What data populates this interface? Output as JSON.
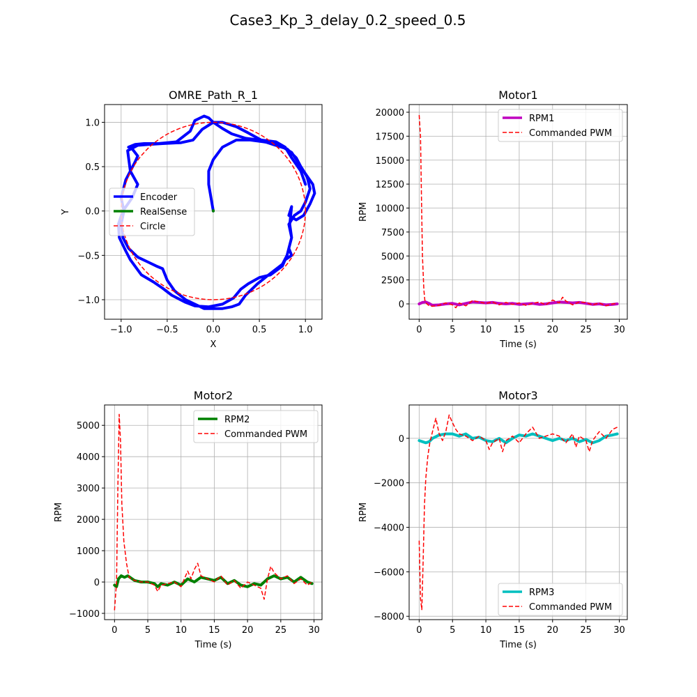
{
  "figure": {
    "suptitle": "Case3_Kp_3_delay_0.2_speed_0.5"
  },
  "chart_data": [
    {
      "id": "path",
      "type": "line",
      "title": "OMRE_Path_R_1",
      "xlabel": "X",
      "ylabel": "Y",
      "xlim": [
        -1.18,
        1.18
      ],
      "ylim": [
        -1.22,
        1.2
      ],
      "xticks": [
        -1.0,
        -0.5,
        0.0,
        0.5,
        1.0
      ],
      "xtick_labels": [
        "−1.0",
        "−0.5",
        "0.0",
        "0.5",
        "1.0"
      ],
      "yticks": [
        -1.0,
        -0.5,
        0.0,
        0.5,
        1.0
      ],
      "ytick_labels": [
        "−1.0",
        "−0.5",
        "0.0",
        "0.5",
        "1.0"
      ],
      "grid": true,
      "legend_position": "center-left",
      "series": [
        {
          "name": "Encoder",
          "color": "#0000ff",
          "style": "solid",
          "width": 4,
          "x": [
            0.0,
            -0.05,
            -0.05,
            0.0,
            0.1,
            0.25,
            0.4,
            0.55,
            0.65,
            0.72,
            0.85,
            0.92,
            1.0,
            1.08,
            1.1,
            1.05,
            0.98,
            0.9,
            0.82,
            0.85,
            0.83,
            0.85,
            0.8,
            0.75,
            0.6,
            0.48,
            0.35,
            0.28,
            0.2,
            0.1,
            0.0,
            -0.1,
            -0.2,
            -0.3,
            -0.42,
            -0.5,
            -0.55,
            -0.62,
            -0.7,
            -0.82,
            -0.92,
            -0.98,
            -1.0,
            -0.97,
            -1.0,
            -0.95,
            -0.85,
            -0.82,
            -0.88,
            -0.92,
            -0.85,
            -0.75,
            -0.6,
            -0.4,
            -0.25,
            -0.2,
            -0.1,
            -0.05,
            0.0,
            0.1,
            0.2,
            0.35,
            0.5,
            0.65,
            0.8,
            0.9,
            0.95,
            1.02,
            1.05,
            1.0,
            0.95,
            0.88,
            0.82,
            0.85,
            0.82,
            0.85,
            0.78,
            0.75,
            0.62,
            0.5,
            0.38,
            0.3,
            0.22,
            0.1,
            -0.05,
            -0.2,
            -0.3,
            -0.45,
            -0.55,
            -0.65,
            -0.78,
            -0.9,
            -0.95,
            -1.02,
            -1.03,
            -0.98,
            -0.88,
            -0.82,
            -0.9,
            -0.93,
            -0.82,
            -0.7,
            -0.55,
            -0.35,
            -0.22,
            -0.12,
            0.0,
            0.1,
            0.25,
            0.38,
            0.52,
            0.68,
            0.78,
            0.85,
            0.95,
            1.0
          ],
          "y": [
            0.0,
            0.3,
            0.45,
            0.58,
            0.72,
            0.8,
            0.8,
            0.78,
            0.76,
            0.74,
            0.66,
            0.55,
            0.42,
            0.3,
            0.2,
            0.08,
            -0.05,
            -0.1,
            -0.05,
            0.05,
            -0.15,
            -0.3,
            -0.5,
            -0.6,
            -0.72,
            -0.82,
            -0.95,
            -1.05,
            -1.08,
            -1.1,
            -1.1,
            -1.1,
            -1.05,
            -1.0,
            -0.9,
            -0.78,
            -0.65,
            -0.62,
            -0.58,
            -0.52,
            -0.42,
            -0.3,
            -0.15,
            0.0,
            0.15,
            0.35,
            0.55,
            0.62,
            0.7,
            0.72,
            0.75,
            0.76,
            0.76,
            0.78,
            0.9,
            1.02,
            1.07,
            1.05,
            1.0,
            0.93,
            0.87,
            0.82,
            0.8,
            0.75,
            0.7,
            0.6,
            0.5,
            0.38,
            0.25,
            0.1,
            0.0,
            -0.05,
            -0.15,
            -0.3,
            -0.42,
            -0.5,
            -0.55,
            -0.62,
            -0.72,
            -0.75,
            -0.82,
            -0.88,
            -0.98,
            -1.05,
            -1.08,
            -1.07,
            -1.03,
            -0.95,
            -0.87,
            -0.8,
            -0.72,
            -0.55,
            -0.45,
            -0.3,
            -0.15,
            0.0,
            0.15,
            0.3,
            0.45,
            0.68,
            0.74,
            0.75,
            0.76,
            0.77,
            0.8,
            0.92,
            1.0,
            1.0,
            0.95,
            0.88,
            0.8,
            0.78,
            0.72,
            0.6,
            0.45,
            0.3
          ]
        },
        {
          "name": "RealSense",
          "color": "#008000",
          "style": "solid",
          "width": 4,
          "x": [
            0.0,
            0.0
          ],
          "y": [
            0.0,
            0.005
          ]
        },
        {
          "name": "Circle",
          "color": "#ff0000",
          "style": "dashed",
          "width": 1.5,
          "parametric": "circle",
          "radius": 1.0,
          "x": [],
          "y": []
        }
      ]
    },
    {
      "id": "motor1",
      "type": "line",
      "title": "Motor1",
      "xlabel": "Time (s)",
      "ylabel": "RPM",
      "xlim": [
        -1.5,
        31.2
      ],
      "ylim": [
        -1600,
        20800
      ],
      "xticks": [
        0,
        5,
        10,
        15,
        20,
        25,
        30
      ],
      "xtick_labels": [
        "0",
        "5",
        "10",
        "15",
        "20",
        "25",
        "30"
      ],
      "yticks": [
        0,
        2500,
        5000,
        7500,
        10000,
        12500,
        15000,
        17500,
        20000
      ],
      "ytick_labels": [
        "0",
        "2500",
        "5000",
        "7500",
        "10000",
        "12500",
        "15000",
        "17500",
        "20000"
      ],
      "grid": true,
      "legend_position": "upper-right",
      "series": [
        {
          "name": "RPM1",
          "color": "#bf00bf",
          "style": "solid",
          "width": 4,
          "x": [
            0,
            0.5,
            1,
            1.5,
            2,
            3,
            4,
            5,
            6,
            7,
            8,
            9,
            10,
            11,
            12,
            13,
            14,
            15,
            16,
            17,
            18,
            19,
            20,
            21,
            22,
            23,
            24,
            25,
            26,
            27,
            28,
            29,
            29.7
          ],
          "y": [
            0,
            150,
            200,
            50,
            -150,
            -100,
            0,
            50,
            -100,
            50,
            200,
            150,
            100,
            150,
            50,
            0,
            50,
            -50,
            0,
            50,
            -50,
            0,
            100,
            200,
            150,
            100,
            150,
            50,
            -50,
            0,
            -100,
            -50,
            0
          ]
        },
        {
          "name": "Commanded PWM",
          "color": "#ff0000",
          "style": "dashed",
          "width": 1.5,
          "x": [
            0,
            0.2,
            0.35,
            0.5,
            0.7,
            0.85,
            1,
            1.5,
            2,
            3,
            4,
            5,
            5.5,
            6,
            7,
            8,
            9,
            10,
            11,
            12,
            13,
            14,
            15,
            16,
            17,
            18,
            19,
            20,
            21,
            21.5,
            22,
            23,
            24,
            25,
            26,
            27,
            28,
            29,
            29.7
          ],
          "y": [
            19700,
            17500,
            11000,
            5000,
            1500,
            400,
            100,
            -200,
            -250,
            -150,
            100,
            -100,
            -400,
            100,
            -200,
            350,
            200,
            50,
            200,
            -100,
            150,
            -50,
            100,
            -150,
            50,
            200,
            -100,
            400,
            100,
            700,
            300,
            -100,
            200,
            150,
            -100,
            100,
            -200,
            0,
            50
          ]
        }
      ]
    },
    {
      "id": "motor2",
      "type": "line",
      "title": "Motor2",
      "xlabel": "Time (s)",
      "ylabel": "RPM",
      "xlim": [
        -1.5,
        31.2
      ],
      "ylim": [
        -1200,
        5650
      ],
      "xticks": [
        0,
        5,
        10,
        15,
        20,
        25,
        30
      ],
      "xtick_labels": [
        "0",
        "5",
        "10",
        "15",
        "20",
        "25",
        "30"
      ],
      "yticks": [
        -1000,
        0,
        1000,
        2000,
        3000,
        4000,
        5000
      ],
      "ytick_labels": [
        "−1000",
        "0",
        "1000",
        "2000",
        "3000",
        "4000",
        "5000"
      ],
      "grid": true,
      "legend_position": "upper-right",
      "series": [
        {
          "name": "RPM2",
          "color": "#008000",
          "style": "solid",
          "width": 4,
          "x": [
            0,
            0.3,
            0.6,
            1,
            1.5,
            2,
            3,
            4,
            5,
            6,
            6.5,
            7,
            8,
            9,
            10,
            11,
            12,
            13,
            14,
            15,
            16,
            17,
            18,
            19,
            20,
            21,
            22,
            23,
            24,
            25,
            26,
            27,
            28,
            29,
            29.7
          ],
          "y": [
            -100,
            -150,
            100,
            200,
            150,
            200,
            50,
            0,
            0,
            -50,
            -150,
            -50,
            -100,
            0,
            -100,
            100,
            0,
            150,
            100,
            50,
            150,
            -50,
            50,
            -100,
            -150,
            -50,
            -100,
            100,
            200,
            100,
            150,
            0,
            150,
            0,
            -50
          ]
        },
        {
          "name": "Commanded PWM",
          "color": "#ff0000",
          "style": "dashed",
          "width": 1.5,
          "x": [
            0,
            0.3,
            0.5,
            0.7,
            0.9,
            1.1,
            1.4,
            1.8,
            2.2,
            3,
            4,
            5,
            6,
            6.5,
            7,
            8,
            9,
            10,
            10.5,
            11,
            11.5,
            12,
            12.5,
            13,
            14,
            15,
            16,
            17,
            18,
            19,
            20,
            21,
            22,
            22.5,
            23,
            23.5,
            24,
            25,
            26,
            27,
            28,
            29,
            29.7
          ],
          "y": [
            -900,
            0,
            3000,
            5350,
            4500,
            2500,
            1300,
            600,
            150,
            50,
            0,
            0,
            -100,
            -300,
            -100,
            -50,
            0,
            -150,
            100,
            350,
            100,
            400,
            600,
            200,
            100,
            0,
            200,
            -100,
            50,
            -200,
            0,
            -100,
            -200,
            -550,
            100,
            500,
            300,
            100,
            200,
            -50,
            100,
            -100,
            0
          ]
        }
      ]
    },
    {
      "id": "motor3",
      "type": "line",
      "title": "Motor3",
      "xlabel": "Time (s)",
      "ylabel": "RPM",
      "xlim": [
        -1.5,
        31.2
      ],
      "ylim": [
        -8150,
        1500
      ],
      "xticks": [
        0,
        5,
        10,
        15,
        20,
        25,
        30
      ],
      "xtick_labels": [
        "0",
        "5",
        "10",
        "15",
        "20",
        "25",
        "30"
      ],
      "yticks": [
        -8000,
        -6000,
        -4000,
        -2000,
        0
      ],
      "ytick_labels": [
        "−8000",
        "−6000",
        "−4000",
        "−2000",
        "0"
      ],
      "grid": true,
      "legend_position": "lower-right",
      "series": [
        {
          "name": "RPM3",
          "color": "#00bfbf",
          "style": "solid",
          "width": 4,
          "x": [
            0,
            0.5,
            1,
            1.5,
            2,
            3,
            4,
            5,
            6,
            7,
            8,
            9,
            10,
            11,
            12,
            13,
            14,
            15,
            16,
            17,
            18,
            19,
            20,
            21,
            22,
            23,
            24,
            25,
            26,
            27,
            28,
            29,
            29.7
          ],
          "y": [
            -100,
            -150,
            -200,
            -150,
            0,
            150,
            200,
            200,
            100,
            200,
            0,
            50,
            -100,
            -150,
            0,
            -200,
            0,
            150,
            100,
            200,
            100,
            0,
            -100,
            0,
            -100,
            0,
            -150,
            -50,
            -200,
            -100,
            100,
            150,
            200
          ]
        },
        {
          "name": "Commanded PWM",
          "color": "#ff0000",
          "style": "dashed",
          "width": 1.5,
          "x": [
            0,
            0.2,
            0.4,
            0.6,
            0.8,
            1,
            1.3,
            1.6,
            2,
            2.5,
            3,
            3.5,
            4,
            4.5,
            5,
            5.5,
            6,
            7,
            8,
            9,
            10,
            10.5,
            11,
            12,
            12.5,
            13,
            14,
            15,
            16,
            17,
            18,
            19,
            20,
            21,
            22,
            23,
            23.5,
            24,
            25,
            25.5,
            26,
            27,
            28,
            29,
            29.7
          ],
          "y": [
            -4600,
            -7200,
            -7700,
            -5500,
            -3000,
            -1800,
            -800,
            -200,
            300,
            900,
            200,
            -100,
            300,
            1050,
            700,
            400,
            200,
            100,
            -100,
            100,
            -100,
            -500,
            -200,
            0,
            -600,
            -100,
            100,
            -200,
            200,
            500,
            0,
            100,
            200,
            100,
            -200,
            200,
            -400,
            100,
            -100,
            -600,
            -100,
            300,
            0,
            400,
            500
          ]
        }
      ]
    }
  ]
}
